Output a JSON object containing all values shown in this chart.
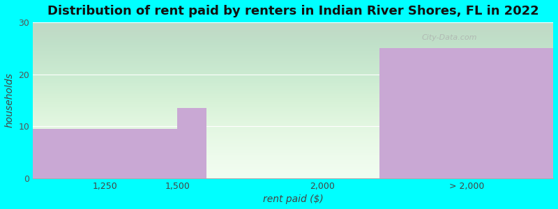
{
  "title": "Distribution of rent paid by renters in Indian River Shores, FL in 2022",
  "xlabel": "rent paid ($)",
  "ylabel": "households",
  "bar_color": "#C9A8D4",
  "ylim": [
    0,
    30
  ],
  "yticks": [
    0,
    10,
    20,
    30
  ],
  "xtick_positions": [
    1250,
    1500,
    2000,
    2500
  ],
  "xtick_labels": [
    "1,250",
    "1,500",
    "2,000",
    "> 2,000"
  ],
  "background_color": "#00FFFF",
  "plot_bg_light": "#f0fdf0",
  "plot_bg_green": "#d8f0d8",
  "title_fontsize": 13,
  "axis_label_fontsize": 10,
  "tick_fontsize": 9,
  "grid_color": "#ffffff",
  "watermark_text": "City-Data.com",
  "bars": [
    {
      "x_left": 1000,
      "x_right": 1500,
      "height": 9.5
    },
    {
      "x_left": 1500,
      "x_right": 1600,
      "height": 13.5
    },
    {
      "x_left": 1600,
      "x_right": 2200,
      "height": 0
    },
    {
      "x_left": 2200,
      "x_right": 2800,
      "height": 25
    }
  ],
  "xlim": [
    1000,
    2800
  ]
}
